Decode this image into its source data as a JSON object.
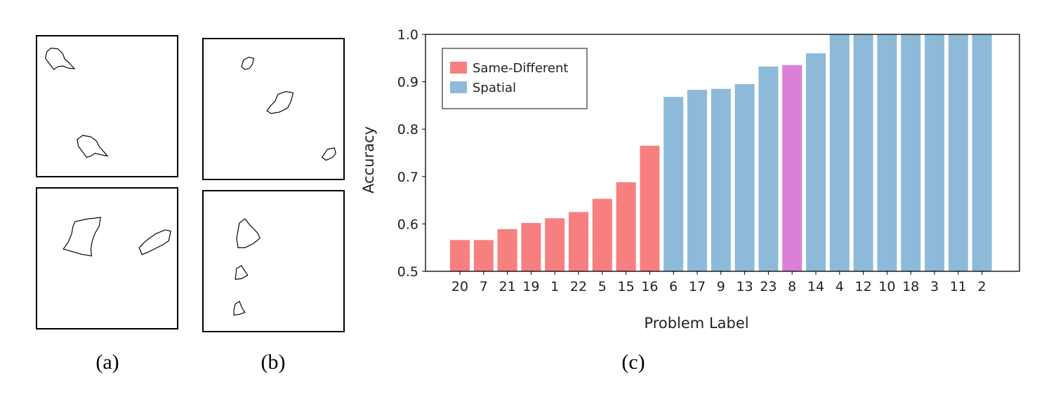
{
  "captions": {
    "a": "(a)",
    "b": "(b)",
    "c": "(c)"
  },
  "chart_data": {
    "type": "bar",
    "title": "",
    "xlabel": "Problem Label",
    "ylabel": "Accuracy",
    "ylim": [
      0.5,
      1.0
    ],
    "yticks": [
      "0.5",
      "0.6",
      "0.7",
      "0.8",
      "0.9",
      "1.0"
    ],
    "categories": [
      "20",
      "7",
      "21",
      "19",
      "1",
      "22",
      "5",
      "15",
      "16",
      "6",
      "17",
      "9",
      "13",
      "23",
      "8",
      "14",
      "4",
      "12",
      "10",
      "18",
      "3",
      "11",
      "2"
    ],
    "values": [
      0.566,
      0.566,
      0.589,
      0.602,
      0.612,
      0.625,
      0.653,
      0.688,
      0.765,
      0.868,
      0.883,
      0.885,
      0.895,
      0.932,
      0.935,
      0.96,
      1.0,
      1.0,
      1.0,
      1.0,
      1.0,
      1.0,
      1.0
    ],
    "groups": [
      "Same-Different",
      "Same-Different",
      "Same-Different",
      "Same-Different",
      "Same-Different",
      "Same-Different",
      "Same-Different",
      "Same-Different",
      "Same-Different",
      "Spatial",
      "Spatial",
      "Spatial",
      "Spatial",
      "Spatial",
      "Highlighted",
      "Spatial",
      "Spatial",
      "Spatial",
      "Spatial",
      "Spatial",
      "Spatial",
      "Spatial",
      "Spatial"
    ],
    "colors": {
      "Same-Different": "#f87f7f",
      "Spatial": "#8dbad9",
      "Highlighted": "#db7fdb"
    },
    "legend": {
      "position": "top-left",
      "entries": [
        "Same-Different",
        "Spatial"
      ]
    },
    "grid": false
  }
}
